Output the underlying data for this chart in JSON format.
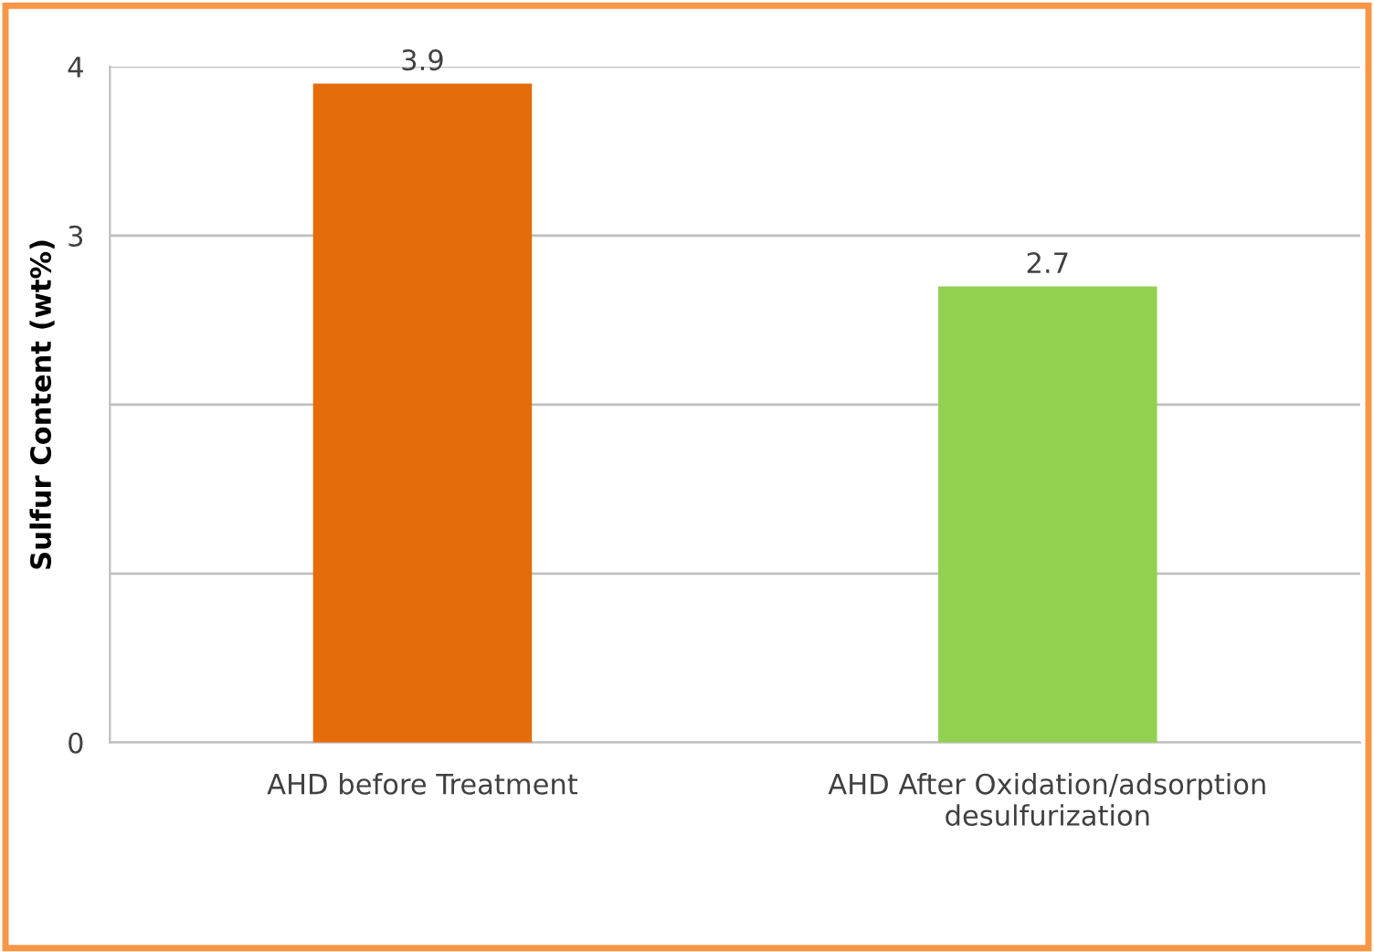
{
  "chart_data": {
    "type": "bar",
    "ylabel": "Sulfur Content (wt%)",
    "categories": [
      "AHD before Treatment",
      "AHD After Oxidation/adsorption\ndesulfurization"
    ],
    "values": [
      3.9,
      2.7
    ],
    "colors": [
      "#e46c0a",
      "#92d050"
    ],
    "ylim": [
      0,
      4
    ],
    "yticks": [
      0,
      {
        "value": 1,
        "label": null
      },
      {
        "value": 2,
        "label": null
      },
      3,
      4
    ],
    "grid": "y",
    "data_labels": true
  }
}
